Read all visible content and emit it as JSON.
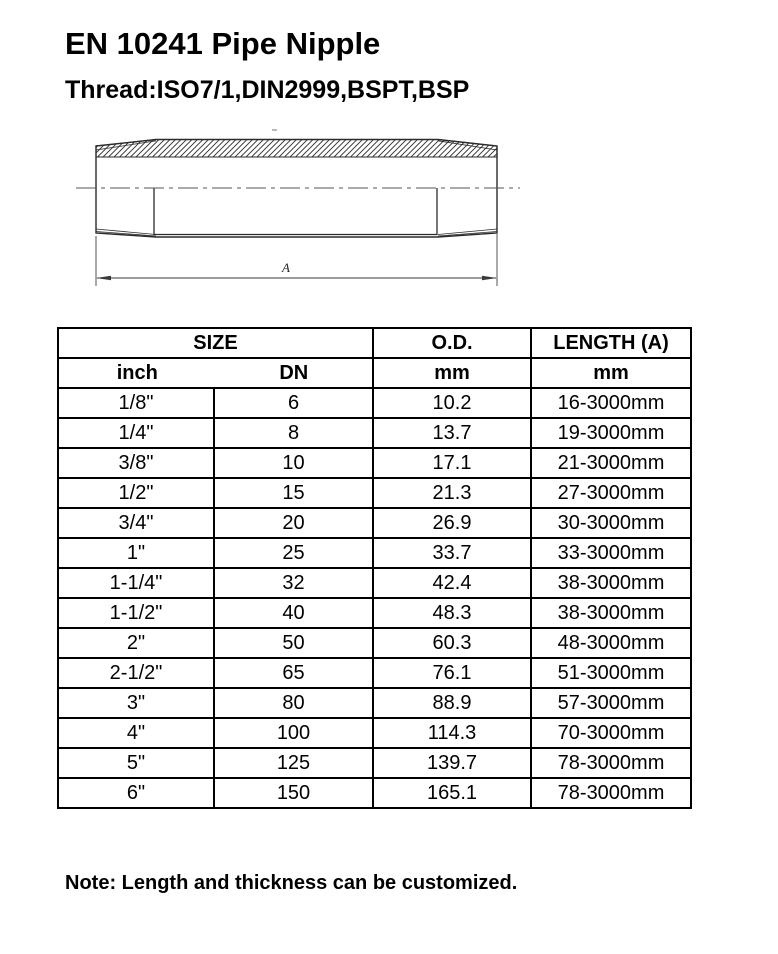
{
  "page": {
    "title": "EN 10241 Pipe Nipple",
    "subtitle": "Thread:ISO7/1,DIN2999,BSPT,BSP",
    "note": "Note: Length and thickness can be customized."
  },
  "drawing": {
    "description": "pipe-nipple-cross-section",
    "dimension_label": "A"
  },
  "table": {
    "header": {
      "size_label": "SIZE",
      "od_label": "O.D.",
      "length_label": "LENGTH (A)",
      "inch_label": "inch",
      "dn_label": "DN",
      "od_unit": "mm",
      "length_unit": "mm"
    },
    "rows": [
      {
        "inch": "1/8\"",
        "dn": "6",
        "od": "10.2",
        "length": "16-3000mm"
      },
      {
        "inch": "1/4\"",
        "dn": "8",
        "od": "13.7",
        "length": "19-3000mm"
      },
      {
        "inch": "3/8\"",
        "dn": "10",
        "od": "17.1",
        "length": "21-3000mm"
      },
      {
        "inch": "1/2\"",
        "dn": "15",
        "od": "21.3",
        "length": "27-3000mm"
      },
      {
        "inch": "3/4\"",
        "dn": "20",
        "od": "26.9",
        "length": "30-3000mm"
      },
      {
        "inch": "1\"",
        "dn": "25",
        "od": "33.7",
        "length": "33-3000mm"
      },
      {
        "inch": "1-1/4\"",
        "dn": "32",
        "od": "42.4",
        "length": "38-3000mm"
      },
      {
        "inch": "1-1/2\"",
        "dn": "40",
        "od": "48.3",
        "length": "38-3000mm"
      },
      {
        "inch": "2\"",
        "dn": "50",
        "od": "60.3",
        "length": "48-3000mm"
      },
      {
        "inch": "2-1/2\"",
        "dn": "65",
        "od": "76.1",
        "length": "51-3000mm"
      },
      {
        "inch": "3\"",
        "dn": "80",
        "od": "88.9",
        "length": "57-3000mm"
      },
      {
        "inch": "4\"",
        "dn": "100",
        "od": "114.3",
        "length": "70-3000mm"
      },
      {
        "inch": "5\"",
        "dn": "125",
        "od": "139.7",
        "length": "78-3000mm"
      },
      {
        "inch": "6\"",
        "dn": "150",
        "od": "165.1",
        "length": "78-3000mm"
      }
    ]
  },
  "colors": {
    "text": "#000000",
    "table_border": "#000000",
    "drawing_line": "#2b2b2b",
    "centerline": "#555555",
    "background": "#ffffff"
  }
}
